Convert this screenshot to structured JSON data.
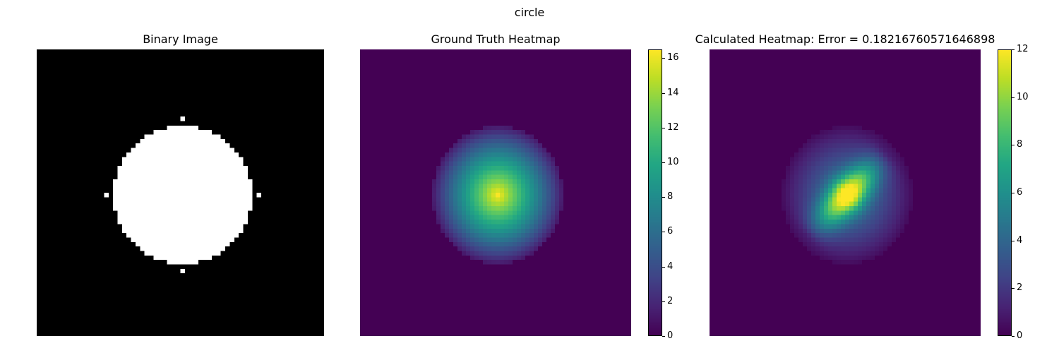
{
  "figure": {
    "title": "circle"
  },
  "chart_data": [
    {
      "type": "heatmap",
      "title": "Binary Image",
      "colormap": "gray",
      "grid_size": [
        64,
        64
      ],
      "shape": "circle",
      "center": [
        32,
        32
      ],
      "radius": 15.5,
      "value_range": [
        0,
        1
      ],
      "axes": "off"
    },
    {
      "type": "heatmap",
      "title": "Ground Truth Heatmap",
      "colormap": "viridis",
      "grid_size": [
        64,
        64
      ],
      "shape": "circle",
      "center": [
        32,
        32
      ],
      "radius": 15.5,
      "peak_value": 16.4,
      "colorbar": {
        "ticks": [
          0,
          2,
          4,
          6,
          8,
          10,
          12,
          14,
          16
        ],
        "vmin": 0,
        "vmax": 16.5
      },
      "axes": "off"
    },
    {
      "type": "heatmap",
      "title": "Calculated Heatmap: Error = 0.18216760571646898",
      "colormap": "viridis",
      "grid_size": [
        64,
        64
      ],
      "shape": "circle",
      "center": [
        32,
        32
      ],
      "radius": 15.5,
      "peak_value": 12,
      "ridge_direction": "diagonal bottom-left to top-right",
      "colorbar": {
        "ticks": [
          0,
          2,
          4,
          6,
          8,
          10,
          12
        ],
        "vmin": 0,
        "vmax": 12
      },
      "axes": "off"
    }
  ]
}
